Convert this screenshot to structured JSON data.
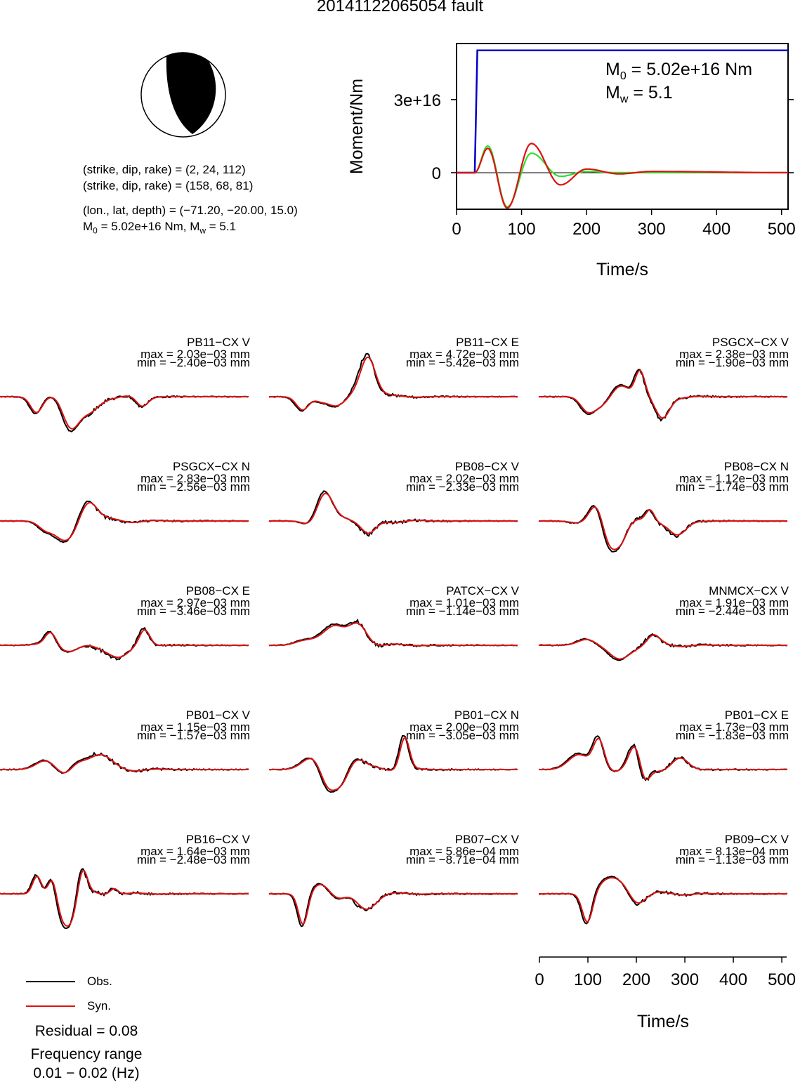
{
  "title": "20141122065054 fault",
  "focal": {
    "plane1": "(strike, dip, rake) = (2, 24, 112)",
    "plane2": "(strike, dip, rake) = (158, 68, 81)",
    "location": "(lon., lat, depth) = (−71.20, −20.00, 15.0)",
    "m0_prefix": "M",
    "m0_sub": "0",
    "m0_rest": " = 5.02e+16 Nm, M",
    "mw_sub": "w",
    "mw_rest": " = 5.1"
  },
  "moment_chart": {
    "ylabel": "Moment/Nm",
    "xlabel": "Time/s",
    "m0_text_prefix": "M",
    "m0_text_sub": "0",
    "m0_text_rest": " = 5.02e+16 Nm",
    "mw_text_prefix": "M",
    "mw_text_sub": "w",
    "mw_text_rest": " = 5.1",
    "x_ticks": [
      "0",
      "100",
      "200",
      "300",
      "400",
      "500"
    ],
    "y_ticks": [
      "0",
      "3e+16"
    ],
    "colors": {
      "cumulative": "#0000cc",
      "rate_red": "#dd1111",
      "rate_green": "#33dd33"
    }
  },
  "waveform_axis": {
    "xlabel": "Time/s",
    "x_ticks": [
      "0",
      "100",
      "200",
      "300",
      "400",
      "500"
    ]
  },
  "legend": {
    "obs": "Obs.",
    "syn": "Syn.",
    "obs_color": "#000000",
    "syn_color": "#dd1111"
  },
  "footer": {
    "residual": "Residual = 0.08",
    "freq_label": "Frequency range",
    "freq_value": "0.01 − 0.02 (Hz)"
  },
  "stations": [
    {
      "name": "PB11−CX V",
      "max": "max = 2.03e−03 mm",
      "min": "min = −2.40e−03 mm"
    },
    {
      "name": "PB11−CX E",
      "max": "max = 4.72e−03 mm",
      "min": "min = −5.42e−03 mm"
    },
    {
      "name": "PSGCX−CX V",
      "max": "max = 2.38e−03 mm",
      "min": "min = −1.90e−03 mm"
    },
    {
      "name": "PSGCX−CX N",
      "max": "max = 2.83e−03 mm",
      "min": "min = −2.56e−03 mm"
    },
    {
      "name": "PB08−CX V",
      "max": "max = 2.02e−03 mm",
      "min": "min = −2.33e−03 mm"
    },
    {
      "name": "PB08−CX N",
      "max": "max = 1.12e−03 mm",
      "min": "min = −1.74e−03 mm"
    },
    {
      "name": "PB08−CX E",
      "max": "max = 2.97e−03 mm",
      "min": "min = −3.46e−03 mm"
    },
    {
      "name": "PATCX−CX V",
      "max": "max = 1.01e−03 mm",
      "min": "min = −1.14e−03 mm"
    },
    {
      "name": "MNMCX−CX V",
      "max": "max = 1.91e−03 mm",
      "min": "min = −2.44e−03 mm"
    },
    {
      "name": "PB01−CX V",
      "max": "max = 1.15e−03 mm",
      "min": "min = −1.57e−03 mm"
    },
    {
      "name": "PB01−CX N",
      "max": "max = 2.00e−03 mm",
      "min": "min = −3.05e−03 mm"
    },
    {
      "name": "PB01−CX E",
      "max": "max = 1.73e−03 mm",
      "min": "min = −1.83e−03 mm"
    },
    {
      "name": "PB16−CX V",
      "max": "max = 1.64e−03 mm",
      "min": "min = −2.48e−03 mm"
    },
    {
      "name": "PB07−CX V",
      "max": "max = 5.86e−04 mm",
      "min": "min = −8.71e−04 mm"
    },
    {
      "name": "PB09−CX V",
      "max": "max = 8.13e−04 mm",
      "min": "min = −1.13e−03 mm"
    }
  ],
  "chart_data": [
    {
      "type": "line",
      "xlabel": "Time/s",
      "ylabel": "Moment/Nm",
      "xlim": [
        0,
        510
      ],
      "ylim": [
        -1.5e+16,
        5.3e+16
      ],
      "series": [
        {
          "x": [
            0,
            28,
            32,
            510
          ],
          "values": [
            0,
            0,
            5.02e+16,
            5.02e+16
          ]
        },
        {
          "x": [
            0,
            28,
            48,
            78,
            115,
            160,
            200,
            250,
            300,
            510
          ],
          "values": [
            0,
            0,
            1e+16,
            -1.45e+16,
            1.2e+16,
            -5000000000000000.0,
            1500000000000000.0,
            -500000000000000.0,
            500000000000000.0,
            0
          ]
        },
        {
          "x": [
            0,
            28,
            48,
            78,
            115,
            160,
            200,
            250,
            510
          ],
          "values": [
            0,
            0,
            1.1e+16,
            -1.4e+16,
            8000000000000000.0,
            -1500000000000000.0,
            500000000000000.0,
            0,
            0
          ]
        }
      ]
    },
    {
      "type": "line",
      "xlabel": "Time/s",
      "xlim": [
        0,
        510
      ],
      "series": [
        {
          "name": "Obs."
        },
        {
          "name": "Syn."
        }
      ]
    }
  ]
}
